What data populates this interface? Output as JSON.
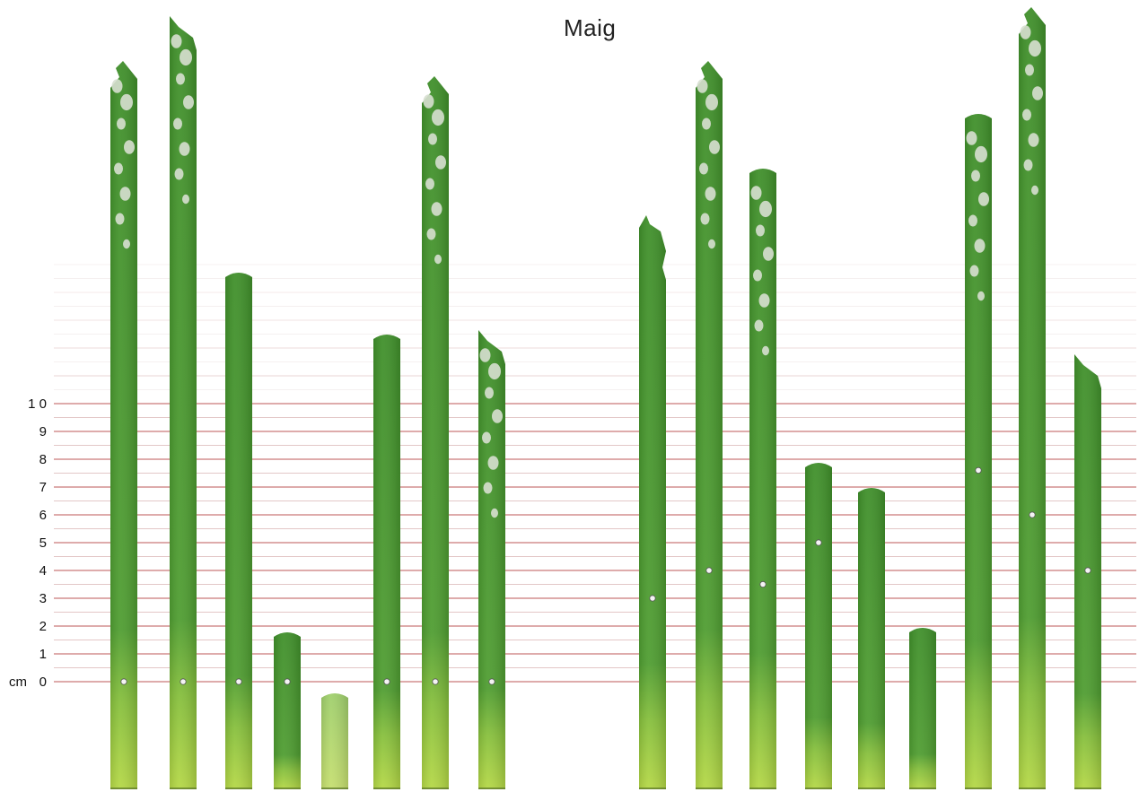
{
  "title": "Maig",
  "scale": {
    "unit_label": "cm",
    "ticks": [
      "0",
      "1",
      "2",
      "3",
      "4",
      "5",
      "6",
      "7",
      "8",
      "9",
      "1 0"
    ],
    "line_color": "#b23a3a"
  },
  "colors": {
    "leaf_dark": "#3f8f2a",
    "leaf_mid": "#5faa38",
    "leaf_base": "#a6cf3e",
    "lesion": "#d7dfd0"
  },
  "groups": [
    {
      "plants": [
        {
          "tip": "damaged",
          "marker_cm": 0,
          "lesions": true
        },
        {
          "tip": "damaged",
          "marker_cm": 0,
          "lesions": true
        },
        {
          "tip": "round",
          "marker_cm": 0,
          "lesions": false
        },
        {
          "tip": "round",
          "marker_cm": 0,
          "lesions": false
        },
        {
          "tip": "round",
          "marker_cm": null,
          "lesions": false,
          "pale": true
        },
        {
          "tip": "round",
          "marker_cm": 0,
          "lesions": false
        },
        {
          "tip": "damaged",
          "marker_cm": 0,
          "lesions": true
        },
        {
          "tip": "damaged",
          "marker_cm": 0,
          "lesions": true
        }
      ]
    },
    {
      "plants": [
        {
          "tip": "damaged",
          "marker_cm": 3,
          "lesions": false
        },
        {
          "tip": "damaged",
          "marker_cm": 4,
          "lesions": true
        },
        {
          "tip": "round",
          "marker_cm": 3.5,
          "lesions": true
        },
        {
          "tip": "round",
          "marker_cm": 5,
          "lesions": false
        },
        {
          "tip": "round",
          "marker_cm": null,
          "lesions": false
        },
        {
          "tip": "round",
          "marker_cm": null,
          "lesions": false
        },
        {
          "tip": "round",
          "marker_cm": 7.6,
          "lesions": true
        },
        {
          "tip": "damaged",
          "marker_cm": 6,
          "lesions": true
        },
        {
          "tip": "damaged",
          "marker_cm": 4,
          "lesions": false
        }
      ]
    }
  ]
}
